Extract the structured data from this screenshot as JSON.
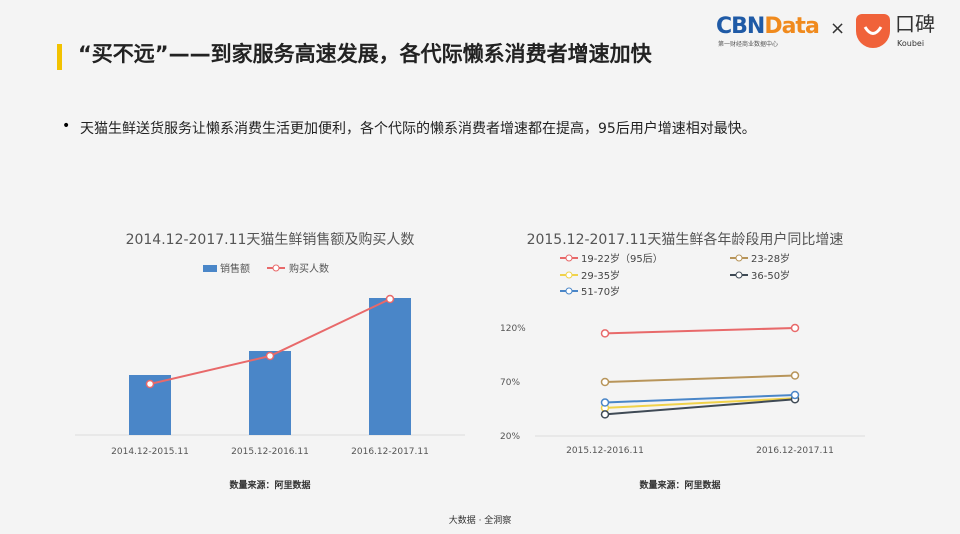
{
  "header": {
    "title": "“买不远”——到家服务高速发展，各代际懒系消费者增速加快",
    "logo_cbn": "CBNData",
    "logo_cbn_sub": "第一财经商业数据中心",
    "times": "×",
    "logo_koubei": "口碑",
    "logo_koubei_en": "Koubei"
  },
  "bullet": "天猫生鲜送货服务让懒系消费生活更加便利，各个代际的懒系消费者增速都在提高，95后用户增速相对最快。",
  "footer": "大数据 · 全洞察",
  "colors": {
    "bar": "#4a86c8",
    "line": "#e8696a",
    "accent": "#f2c200"
  },
  "chart_data": [
    {
      "type": "bar+line",
      "title": "2014.12-2017.11天猫生鲜销售额及购买人数",
      "categories": [
        "2014.12-2015.11",
        "2015.12-2016.11",
        "2016.12-2017.11"
      ],
      "series": [
        {
          "name": "销售额",
          "type": "bar",
          "values": [
            60,
            84,
            137
          ]
        },
        {
          "name": "购买人数",
          "type": "line",
          "values": [
            51,
            79,
            136
          ]
        }
      ],
      "y_axis_shown": false,
      "legend": "top",
      "source": "数量来源：阿里数据"
    },
    {
      "type": "line",
      "title": "2015.12-2017.11天猫生鲜各年龄段用户同比增速",
      "categories": [
        "2015.12-2016.11",
        "2016.12-2017.11"
      ],
      "yticks": [
        "20%",
        "70%",
        "120%"
      ],
      "ylim": [
        20,
        120
      ],
      "series": [
        {
          "name": "19-22岁（95后）",
          "color": "#e8696a",
          "values": [
            115,
            120
          ]
        },
        {
          "name": "23-28岁",
          "color": "#b8955a",
          "values": [
            70,
            76
          ]
        },
        {
          "name": "29-35岁",
          "color": "#f0d24a",
          "values": [
            46,
            55
          ]
        },
        {
          "name": "36-50岁",
          "color": "#3f4a55",
          "values": [
            40,
            54
          ]
        },
        {
          "name": "51-70岁",
          "color": "#4a86c8",
          "values": [
            51,
            58
          ]
        }
      ],
      "legend": "top",
      "source": "数量来源：阿里数据"
    }
  ]
}
